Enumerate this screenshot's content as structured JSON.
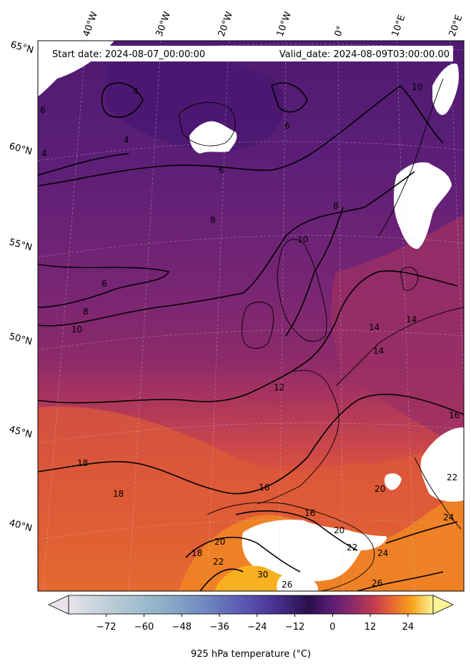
{
  "header": {
    "start_date": "Start date: 2024-08-07_00:00:00",
    "valid_date": "Valid_date: 2024-08-09T03:00:00.00"
  },
  "longitude_labels": [
    "40°W",
    "30°W",
    "20°W",
    "10°W",
    "0°",
    "10°E",
    "20°E"
  ],
  "latitude_labels": [
    "65°N",
    "60°N",
    "55°N",
    "50°N",
    "45°N",
    "40°N"
  ],
  "contour_labels": [
    "6",
    "4",
    "4",
    "4",
    "6",
    "6",
    "8",
    "6",
    "8",
    "10",
    "10",
    "8",
    "10",
    "12",
    "14",
    "14",
    "14",
    "16",
    "18",
    "18",
    "16",
    "16",
    "18",
    "20",
    "20",
    "22",
    "20",
    "22",
    "24",
    "26",
    "26",
    "30",
    "22",
    "24"
  ],
  "colorbar": {
    "label": "925 hPa temperature ($^\\circ$C)",
    "label_display": "925 hPa temperature (°C)",
    "ticks": [
      -72,
      -60,
      -48,
      -36,
      -24,
      -12,
      0,
      12,
      24
    ],
    "range": [
      -84,
      32
    ],
    "colormap": "inferno (dark purple to yellow), grey-blue for negative values",
    "extend": "both"
  },
  "colors": {
    "cold_north": "#5a1f77",
    "mid": "#8a2969",
    "warm": "#c2424f",
    "hot": "#ee7a2a",
    "hottest": "#f7a91a",
    "missing_data": "#ffffff"
  }
}
